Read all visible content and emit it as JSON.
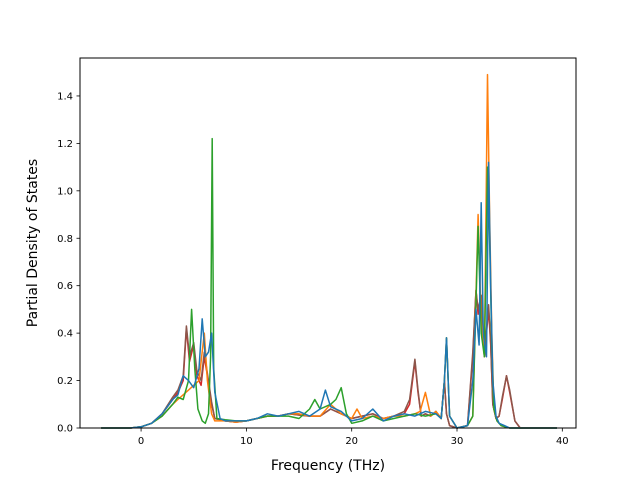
{
  "chart_data": {
    "type": "line",
    "title": "",
    "xlabel": "Frequency (THz)",
    "ylabel": "Partial Density of States",
    "xlim": [
      -5.8,
      41.3
    ],
    "ylim": [
      0.0,
      1.56
    ],
    "xticks": [
      0,
      10,
      20,
      30,
      40
    ],
    "yticks": [
      0.0,
      0.2,
      0.4,
      0.6,
      0.8,
      1.0,
      1.2,
      1.4
    ],
    "xtick_labels": [
      "0",
      "10",
      "20",
      "30",
      "40"
    ],
    "ytick_labels": [
      "0.0",
      "0.2",
      "0.4",
      "0.6",
      "0.8",
      "1.0",
      "1.2",
      "1.4"
    ],
    "grid": false,
    "legend": "none",
    "series": [
      {
        "color": "#d62728",
        "x": [
          -3.8,
          -1,
          0,
          1,
          2,
          3,
          3.5,
          4,
          4.3,
          4.6,
          5,
          5.3,
          5.7,
          6,
          6.3,
          6.7,
          7,
          7.5,
          8,
          9,
          10,
          11,
          12,
          13,
          14,
          15,
          16,
          17,
          18,
          19,
          20,
          21,
          22,
          23,
          24,
          25,
          25.5,
          26,
          26.3,
          26.6,
          27,
          27.5,
          28,
          28.5,
          28.8,
          29,
          29.3,
          30,
          31,
          31.5,
          31.8,
          32,
          32.3,
          32.6,
          33,
          33.2,
          33.4,
          33.7,
          34,
          34.3,
          34.7,
          35,
          35.5,
          36,
          39.5
        ],
        "y": [
          0,
          0,
          0.005,
          0.02,
          0.06,
          0.12,
          0.15,
          0.2,
          0.42,
          0.28,
          0.35,
          0.22,
          0.18,
          0.3,
          0.22,
          0.1,
          0.04,
          0.035,
          0.03,
          0.025,
          0.03,
          0.04,
          0.05,
          0.05,
          0.06,
          0.055,
          0.05,
          0.05,
          0.08,
          0.06,
          0.04,
          0.05,
          0.06,
          0.04,
          0.05,
          0.06,
          0.1,
          0.28,
          0.15,
          0.05,
          0.06,
          0.05,
          0.07,
          0.04,
          0.2,
          0.06,
          0.01,
          0.0,
          0.01,
          0.3,
          0.58,
          0.48,
          0.55,
          0.3,
          0.5,
          0.35,
          0.1,
          0.04,
          0.05,
          0.12,
          0.22,
          0.15,
          0.03,
          0.0,
          0
        ]
      },
      {
        "color": "#8c564b",
        "x": [
          -3.8,
          -1,
          0,
          1,
          2,
          3,
          3.5,
          4,
          4.3,
          4.6,
          5,
          5.3,
          5.7,
          6,
          6.3,
          6.7,
          7,
          7.5,
          8,
          9,
          10,
          11,
          12,
          13,
          14,
          15,
          16,
          17,
          18,
          19,
          20,
          21,
          22,
          23,
          24,
          25,
          25.5,
          26,
          26.3,
          26.6,
          27,
          27.5,
          28,
          28.5,
          28.8,
          29,
          29.3,
          30,
          31,
          31.5,
          31.8,
          32,
          32.3,
          32.6,
          33,
          33.2,
          33.4,
          33.7,
          34,
          34.3,
          34.7,
          35,
          35.5,
          36,
          39.5
        ],
        "y": [
          0,
          0,
          0.005,
          0.02,
          0.06,
          0.13,
          0.16,
          0.22,
          0.43,
          0.3,
          0.36,
          0.24,
          0.2,
          0.32,
          0.23,
          0.11,
          0.04,
          0.035,
          0.03,
          0.025,
          0.03,
          0.04,
          0.05,
          0.05,
          0.06,
          0.055,
          0.05,
          0.05,
          0.08,
          0.06,
          0.04,
          0.05,
          0.06,
          0.04,
          0.05,
          0.07,
          0.12,
          0.29,
          0.16,
          0.05,
          0.06,
          0.05,
          0.07,
          0.04,
          0.2,
          0.06,
          0.01,
          0.0,
          0.01,
          0.32,
          0.58,
          0.5,
          0.56,
          0.32,
          0.52,
          0.36,
          0.1,
          0.04,
          0.05,
          0.13,
          0.22,
          0.16,
          0.03,
          0.0,
          0
        ]
      },
      {
        "color": "#ff7f0e",
        "x": [
          -3.8,
          -1,
          0,
          1,
          2,
          3,
          3.5,
          4,
          4.5,
          5,
          5.5,
          6,
          6.3,
          6.7,
          7,
          8,
          9,
          10,
          11,
          12,
          13,
          14,
          15,
          16,
          17,
          18,
          19,
          20,
          20.5,
          21,
          22,
          23,
          24,
          25,
          26,
          26.5,
          27,
          27.5,
          28,
          28.5,
          28.8,
          29,
          29.3,
          30,
          31,
          31.5,
          32,
          32.3,
          32.6,
          32.9,
          33.1,
          33.3,
          33.5,
          33.8,
          34.2,
          35,
          36,
          39.5
        ],
        "y": [
          0,
          0,
          0.005,
          0.02,
          0.05,
          0.1,
          0.12,
          0.14,
          0.16,
          0.18,
          0.2,
          0.4,
          0.2,
          0.06,
          0.03,
          0.03,
          0.025,
          0.03,
          0.04,
          0.05,
          0.05,
          0.06,
          0.06,
          0.05,
          0.05,
          0.1,
          0.06,
          0.04,
          0.08,
          0.04,
          0.05,
          0.04,
          0.05,
          0.05,
          0.06,
          0.07,
          0.15,
          0.05,
          0.07,
          0.04,
          0.2,
          0.38,
          0.05,
          0.0,
          0.01,
          0.05,
          0.9,
          0.45,
          0.3,
          1.49,
          0.9,
          0.4,
          0.08,
          0.03,
          0.01,
          0.0,
          0.0,
          0
        ]
      },
      {
        "color": "#2ca02c",
        "x": [
          -3.8,
          -1,
          0,
          1,
          2,
          3,
          3.5,
          4,
          4.5,
          4.8,
          5.1,
          5.4,
          5.8,
          6.1,
          6.4,
          6.6,
          6.75,
          6.9,
          7.2,
          8,
          9,
          10,
          11,
          12,
          13,
          14,
          15,
          16,
          16.5,
          17,
          18,
          18.5,
          19,
          19.5,
          20,
          21,
          22,
          23,
          24,
          25,
          26,
          27,
          28,
          28.5,
          28.8,
          29,
          29.3,
          30,
          31,
          31.5,
          32,
          32.3,
          32.6,
          32.9,
          33.1,
          33.3,
          33.5,
          33.8,
          34.2,
          35,
          36,
          39.5
        ],
        "y": [
          0,
          0,
          0.005,
          0.02,
          0.05,
          0.1,
          0.13,
          0.12,
          0.2,
          0.5,
          0.25,
          0.08,
          0.03,
          0.02,
          0.06,
          0.3,
          1.22,
          0.25,
          0.04,
          0.035,
          0.03,
          0.03,
          0.04,
          0.05,
          0.05,
          0.05,
          0.04,
          0.08,
          0.12,
          0.08,
          0.1,
          0.12,
          0.17,
          0.06,
          0.02,
          0.03,
          0.05,
          0.03,
          0.04,
          0.05,
          0.06,
          0.05,
          0.06,
          0.04,
          0.2,
          0.38,
          0.05,
          0.0,
          0.01,
          0.05,
          0.85,
          0.4,
          0.3,
          1.1,
          0.8,
          0.35,
          0.08,
          0.03,
          0.01,
          0.0,
          0.0,
          0
        ]
      },
      {
        "color": "#1f77b4",
        "x": [
          -3.8,
          -1,
          0,
          1,
          2,
          3,
          3.5,
          4,
          4.5,
          5,
          5.5,
          5.8,
          6.1,
          6.4,
          6.7,
          7,
          7.5,
          8,
          9,
          10,
          11,
          12,
          13,
          14,
          15,
          16,
          17,
          17.5,
          18,
          19,
          20,
          21,
          22,
          23,
          24,
          25,
          26,
          27,
          28,
          28.5,
          28.8,
          29,
          29.3,
          30,
          31,
          31.5,
          31.8,
          32.1,
          32.3,
          32.5,
          32.8,
          33.0,
          33.2,
          33.4,
          33.7,
          34,
          34.5,
          35,
          36,
          39.5
        ],
        "y": [
          0,
          0,
          0.005,
          0.02,
          0.06,
          0.12,
          0.14,
          0.22,
          0.2,
          0.17,
          0.25,
          0.46,
          0.3,
          0.32,
          0.4,
          0.15,
          0.04,
          0.03,
          0.03,
          0.03,
          0.04,
          0.06,
          0.05,
          0.06,
          0.07,
          0.05,
          0.08,
          0.16,
          0.09,
          0.07,
          0.03,
          0.04,
          0.08,
          0.03,
          0.05,
          0.06,
          0.05,
          0.07,
          0.06,
          0.04,
          0.2,
          0.38,
          0.05,
          0.0,
          0.01,
          0.2,
          0.5,
          0.35,
          0.95,
          0.4,
          0.3,
          1.12,
          0.6,
          0.2,
          0.05,
          0.02,
          0.01,
          0.0,
          0.0,
          0
        ]
      }
    ]
  }
}
